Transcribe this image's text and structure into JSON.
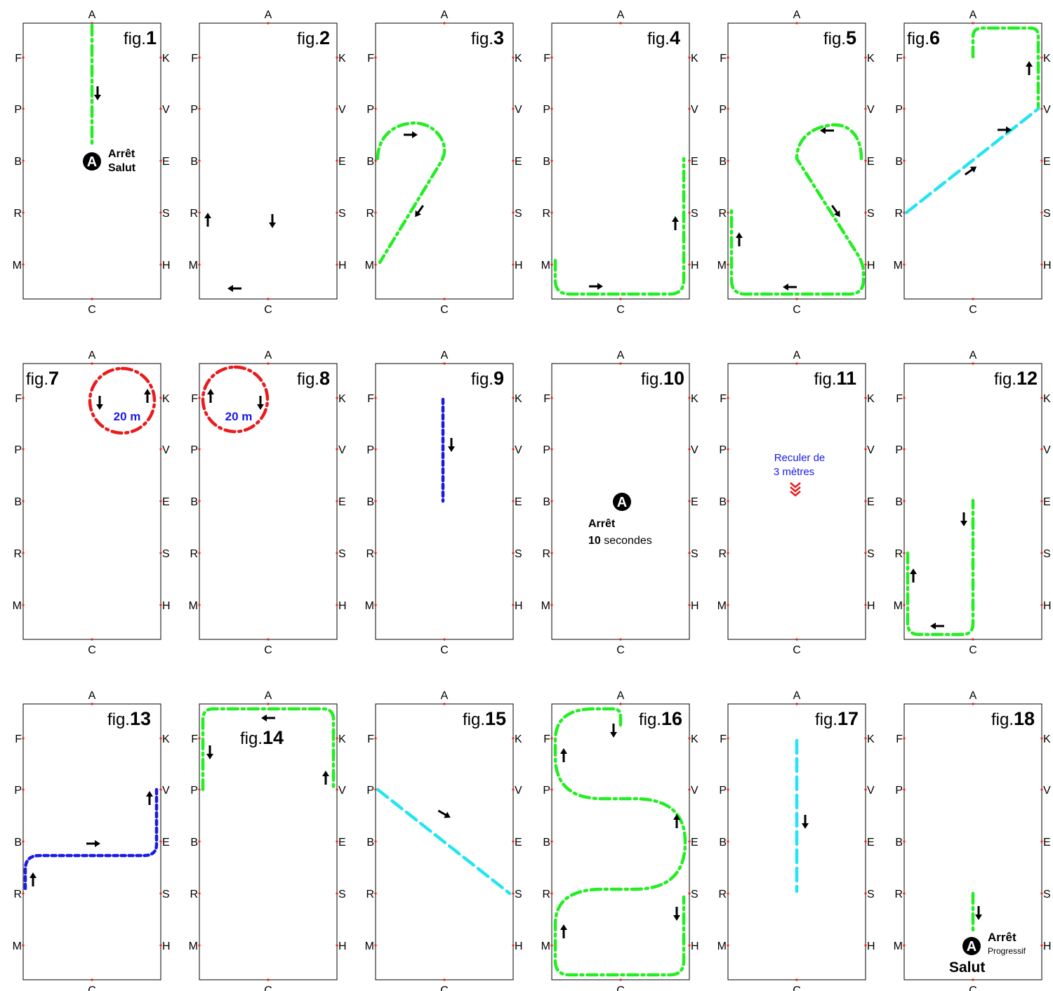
{
  "letters": {
    "top": "A",
    "bottom": "C",
    "left": [
      "F",
      "P",
      "B",
      "R",
      "M"
    ],
    "right": [
      "K",
      "V",
      "E",
      "S",
      "H"
    ]
  },
  "fig_prefix": "fig.",
  "colors": {
    "green": "#22ee22",
    "cyan": "#22e5f0",
    "blue": "#1a1ae6",
    "red": "#e81c1c",
    "black": "#000000",
    "marker": "#e81c1c"
  },
  "figures": [
    {
      "number": "1",
      "texts": {
        "halt_label": "Arrêt",
        "salute_label": "Salut",
        "halt_badge": "A"
      }
    },
    {
      "number": "2",
      "texts": {}
    },
    {
      "number": "3",
      "texts": {}
    },
    {
      "number": "4",
      "texts": {}
    },
    {
      "number": "5",
      "texts": {}
    },
    {
      "number": "6",
      "texts": {}
    },
    {
      "number": "7",
      "texts": {
        "circle_label": "20 m"
      }
    },
    {
      "number": "8",
      "texts": {
        "circle_label": "20 m"
      }
    },
    {
      "number": "9",
      "texts": {}
    },
    {
      "number": "10",
      "texts": {
        "halt_badge": "A",
        "halt_label": "Arrêt",
        "duration_value": "10",
        "duration_unit": "secondes"
      }
    },
    {
      "number": "11",
      "texts": {
        "rein_back_line1": "Reculer de",
        "rein_back_line2": "3 mètres"
      }
    },
    {
      "number": "12",
      "texts": {}
    },
    {
      "number": "13",
      "texts": {}
    },
    {
      "number": "14",
      "texts": {}
    },
    {
      "number": "15",
      "texts": {}
    },
    {
      "number": "16",
      "texts": {}
    },
    {
      "number": "17",
      "texts": {}
    },
    {
      "number": "18",
      "texts": {
        "halt_badge": "A",
        "halt_label": "Arrêt",
        "progressive_label": "Progressif",
        "salute_label": "Salut"
      }
    }
  ]
}
